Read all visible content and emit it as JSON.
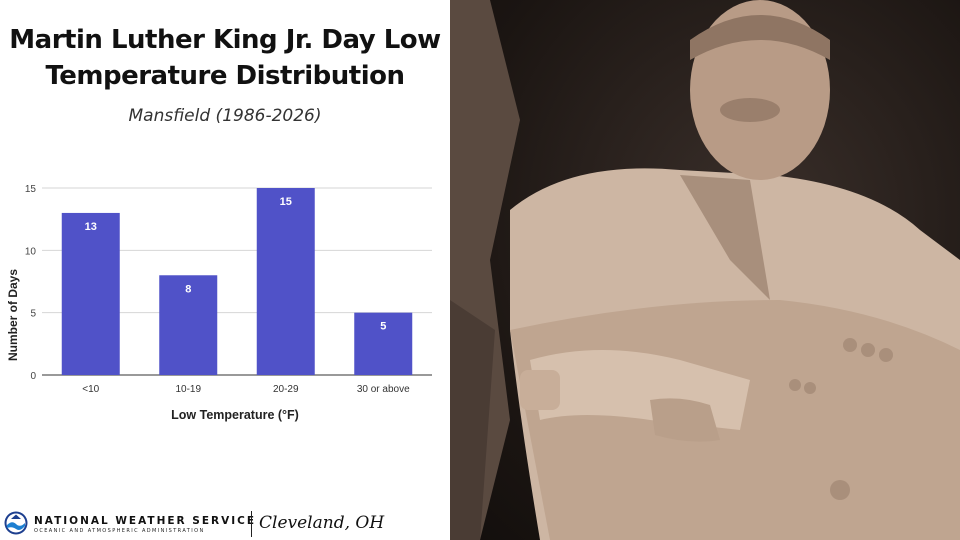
{
  "header": {
    "title": "Martin Luther King Jr. Day Low Temperature Distribution",
    "subtitle": "Mansfield (1986-2026)"
  },
  "chart_data": {
    "type": "bar",
    "categories": [
      "<10",
      "10-19",
      "20-29",
      "30 or above"
    ],
    "values": [
      13,
      8,
      15,
      5
    ],
    "data_labels": [
      "13",
      "8",
      "15",
      "5"
    ],
    "xlabel": "Low Temperature (°F)",
    "ylabel": "Number of Days",
    "ylim": [
      0,
      15
    ],
    "yticks": [
      0,
      5,
      10,
      15
    ],
    "grid": true,
    "bar_color": "#5052c8"
  },
  "footer": {
    "agency": "NATIONAL WEATHER SERVICE",
    "agency_sub": "OCEANIC AND ATMOSPHERIC ADMINISTRATION",
    "office": "Cleveland, OH"
  },
  "photo": {
    "subject_icon": "statue-photo"
  }
}
